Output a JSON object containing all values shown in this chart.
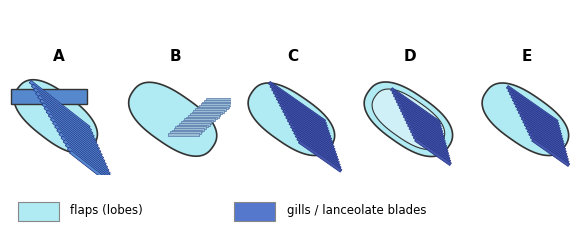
{
  "labels": [
    "A",
    "B",
    "C",
    "D",
    "E"
  ],
  "flap_color": "#b0eaf2",
  "flap_edge_color": "#333333",
  "gill_color_A": "#5588cc",
  "gill_color_B_fill": "#9bbdd4",
  "gill_color_B_edge": "#5577aa",
  "gill_color_CDE": "#4455aa",
  "gill_stripe_color": "#223388",
  "bg_color": "#ffffff",
  "legend_flap_color": "#b0eaf2",
  "legend_gill_color": "#5577cc",
  "legend_flap_text": "flaps (lobes)",
  "legend_gill_text": "gills / lanceolate blades",
  "label_fontsize": 11
}
